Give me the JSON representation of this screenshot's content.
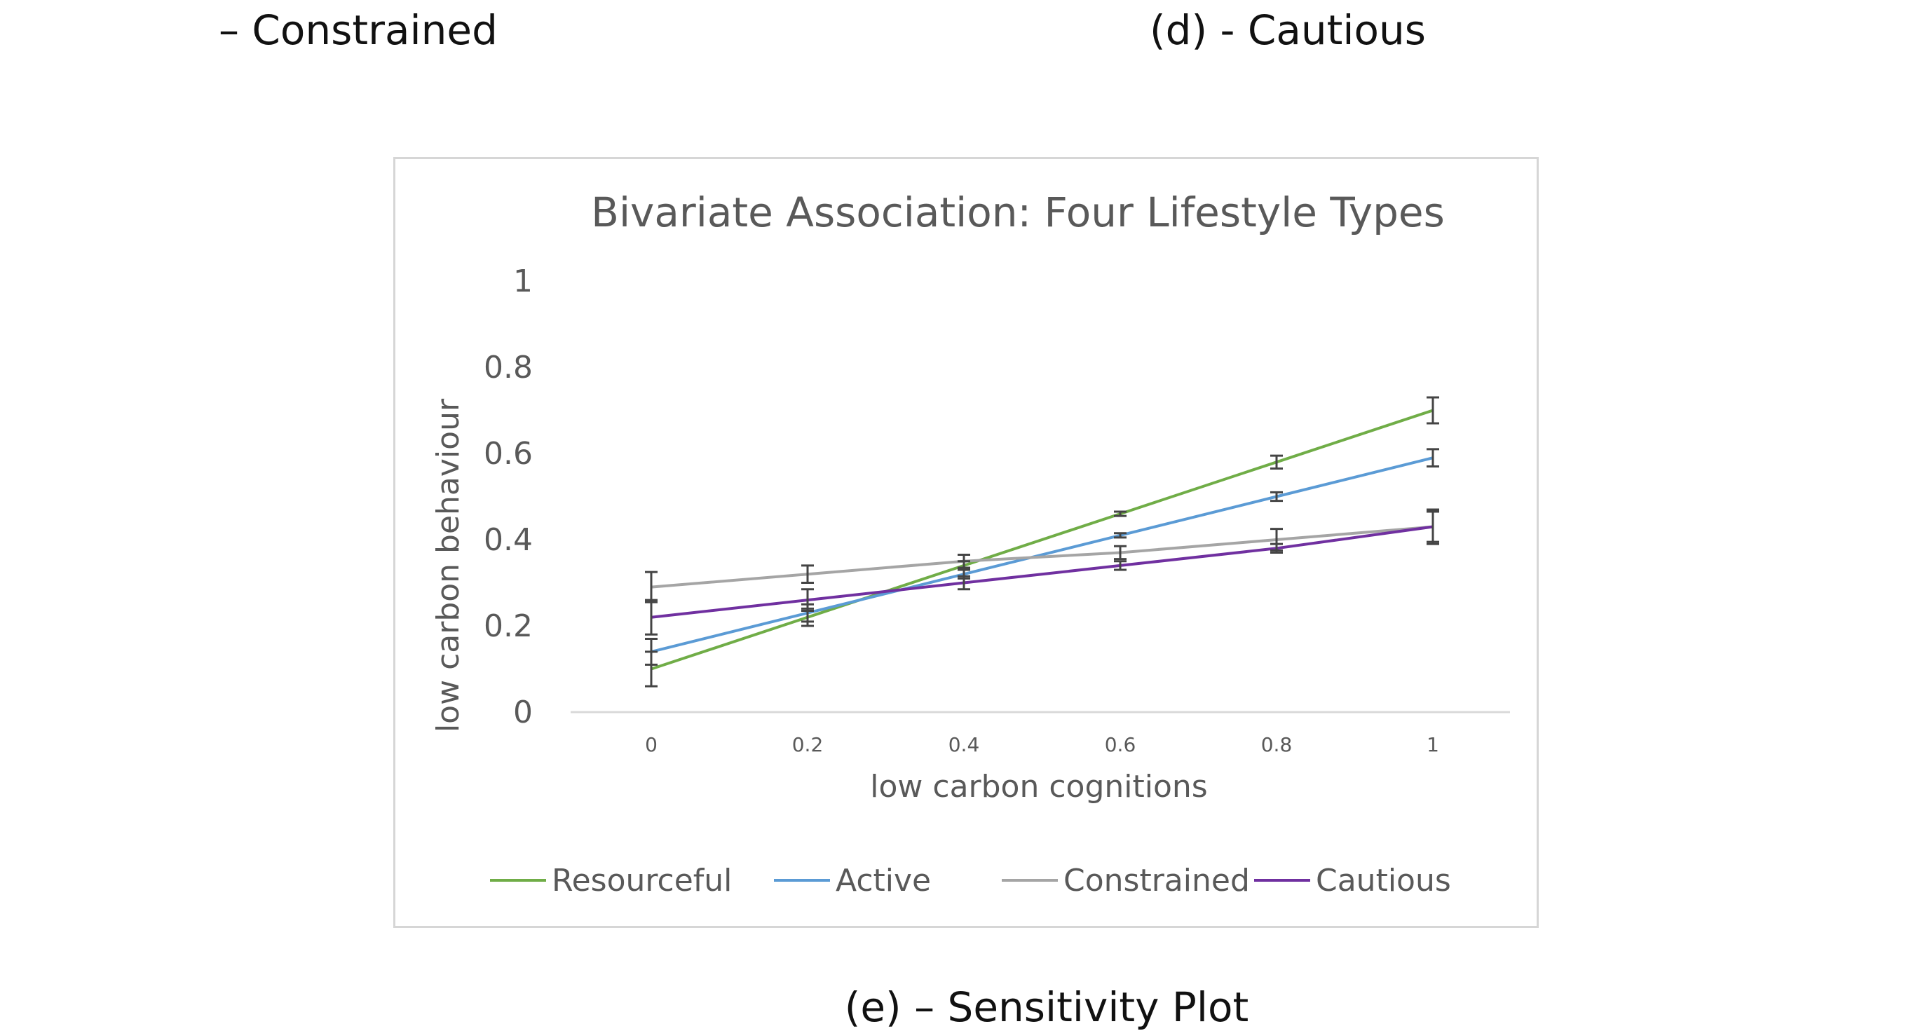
{
  "captions": {
    "c": "– Constrained",
    "d": "(d) - Cautious",
    "e": "(e) – Sensitivity Plot"
  },
  "chart_data": {
    "type": "line",
    "title": "Bivariate Association: Four Lifestyle Types",
    "xlabel": "low carbon cognitions",
    "ylabel": "low carbon behaviour",
    "x": [
      0,
      0.2,
      0.4,
      0.6,
      0.8,
      1
    ],
    "x_tick_labels": [
      "0",
      "0.2",
      "0.4",
      "0.6",
      "0.8",
      "1"
    ],
    "y_tick_labels": [
      "0",
      "0.2",
      "0.4",
      "0.6",
      "0.8",
      "1"
    ],
    "xlim": [
      0,
      1
    ],
    "ylim": [
      0,
      1
    ],
    "grid": false,
    "legend_position": "bottom",
    "series": [
      {
        "name": "Resourceful",
        "color": "#70ad47",
        "values": [
          0.1,
          0.22,
          0.34,
          0.46,
          0.58,
          0.7
        ],
        "error": [
          0.04,
          0.02,
          0.01,
          0.005,
          0.015,
          0.03
        ]
      },
      {
        "name": "Active",
        "color": "#5b9bd5",
        "values": [
          0.14,
          0.23,
          0.32,
          0.41,
          0.5,
          0.59
        ],
        "error": [
          0.03,
          0.02,
          0.01,
          0.005,
          0.01,
          0.02
        ]
      },
      {
        "name": "Constrained",
        "color": "#a5a5a5",
        "values": [
          0.29,
          0.32,
          0.35,
          0.37,
          0.4,
          0.43
        ],
        "error": [
          0.035,
          0.02,
          0.015,
          0.015,
          0.025,
          0.035
        ]
      },
      {
        "name": "Cautious",
        "color": "#7030a0",
        "values": [
          0.22,
          0.26,
          0.3,
          0.34,
          0.38,
          0.43
        ],
        "error": [
          0.04,
          0.025,
          0.015,
          0.01,
          0.01,
          0.04
        ]
      }
    ]
  }
}
